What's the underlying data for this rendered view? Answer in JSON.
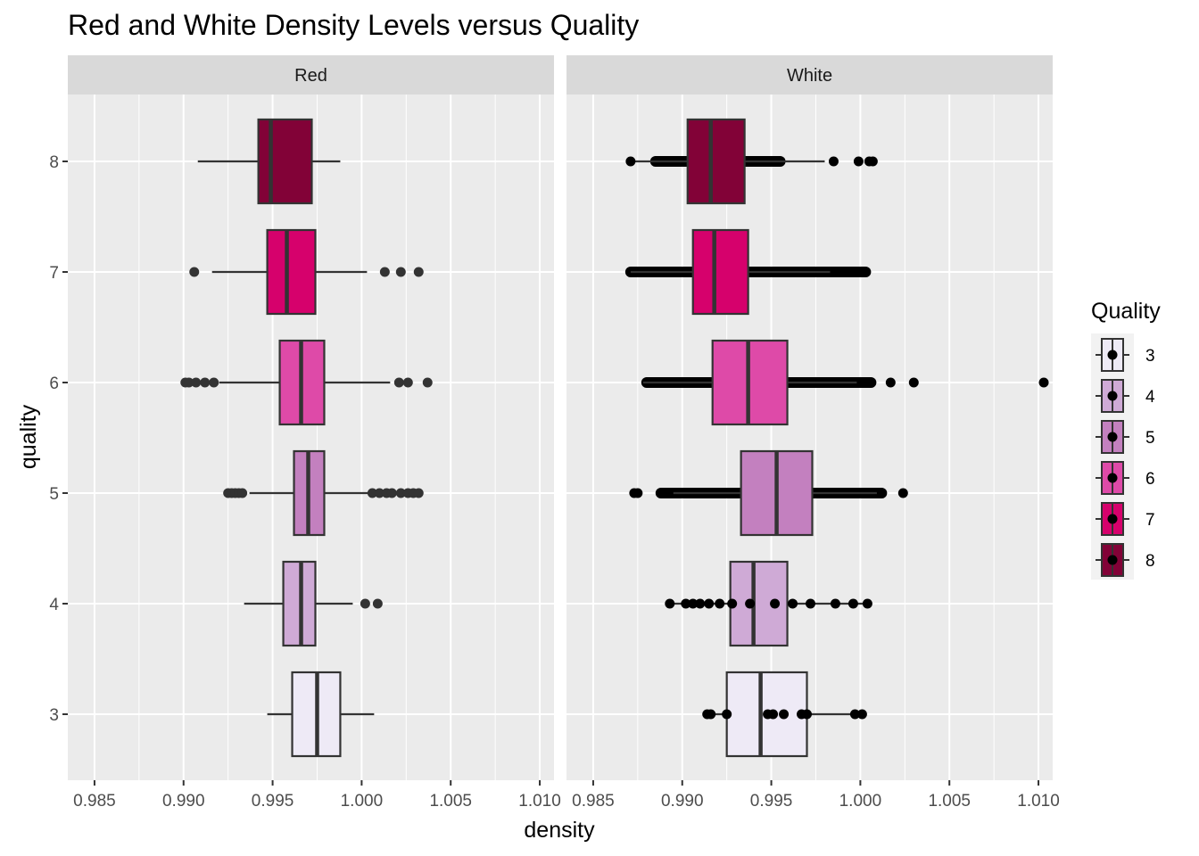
{
  "chart_data": {
    "type": "boxplot",
    "title": "Red and White Density Levels versus Quality",
    "xlabel": "density",
    "ylabel": "quality",
    "xlim": [
      0.9835,
      1.0108
    ],
    "x_ticks": [
      "0.985",
      "0.990",
      "0.995",
      "1.000",
      "1.005",
      "1.010"
    ],
    "y_categories": [
      "3",
      "4",
      "5",
      "6",
      "7",
      "8"
    ],
    "legend": {
      "title": "Quality",
      "position": "right",
      "entries": [
        {
          "label": "3",
          "color": "#EEEAF6"
        },
        {
          "label": "4",
          "color": "#CFAAD6"
        },
        {
          "label": "5",
          "color": "#C380BF"
        },
        {
          "label": "6",
          "color": "#DE4AA8"
        },
        {
          "label": "7",
          "color": "#D6016C"
        },
        {
          "label": "8",
          "color": "#820237"
        }
      ]
    },
    "panels": [
      {
        "name": "Red",
        "boxes": [
          {
            "quality": "3",
            "whisker_low": 0.9947,
            "q1": 0.9961,
            "median": 0.9975,
            "q3": 0.9988,
            "whisker_high": 1.0007,
            "outliers": []
          },
          {
            "quality": "4",
            "whisker_low": 0.9934,
            "q1": 0.9956,
            "median": 0.9966,
            "q3": 0.9974,
            "whisker_high": 0.9995,
            "outliers": [
              1.0002,
              1.0009
            ]
          },
          {
            "quality": "5",
            "whisker_low": 0.9937,
            "q1": 0.9962,
            "median": 0.997,
            "q3": 0.9979,
            "whisker_high": 1.0004,
            "outliers": [
              0.9925,
              0.9927,
              0.9929,
              0.9931,
              0.9933,
              1.0006,
              1.001,
              1.0014,
              1.0017,
              1.0022,
              1.0026,
              1.0029,
              1.0032
            ]
          },
          {
            "quality": "6",
            "whisker_low": 0.992,
            "q1": 0.9954,
            "median": 0.9966,
            "q3": 0.9979,
            "whisker_high": 1.0016,
            "outliers": [
              0.9901,
              0.9903,
              0.9907,
              0.9912,
              0.9917,
              1.0021,
              1.0026,
              1.0037
            ]
          },
          {
            "quality": "7",
            "whisker_low": 0.9916,
            "q1": 0.9947,
            "median": 0.9958,
            "q3": 0.9974,
            "whisker_high": 1.0003,
            "outliers": [
              0.9906,
              1.0013,
              1.0022,
              1.0032
            ]
          },
          {
            "quality": "8",
            "whisker_low": 0.9908,
            "q1": 0.9942,
            "median": 0.9949,
            "q3": 0.9972,
            "whisker_high": 0.9988,
            "outliers": []
          }
        ]
      },
      {
        "name": "White",
        "boxes": [
          {
            "quality": "3",
            "whisker_low": 0.9913,
            "q1": 0.9925,
            "median": 0.9944,
            "q3": 0.997,
            "whisker_high": 0.9999,
            "outliers": [
              0.9914,
              0.9916,
              0.9925,
              0.9948,
              0.9951,
              0.9957,
              0.9967,
              0.997,
              0.9997,
              1.0001
            ]
          },
          {
            "quality": "4",
            "whisker_low": 0.9892,
            "q1": 0.9927,
            "median": 0.994,
            "q3": 0.9959,
            "whisker_high": 1.0004,
            "outliers": [
              0.9893,
              0.9902,
              0.9906,
              0.991,
              0.9915,
              0.9921,
              0.9928,
              0.9938,
              0.9952,
              0.9962,
              0.9972,
              0.9986,
              0.9996,
              1.0004
            ]
          },
          {
            "quality": "5",
            "whisker_low": 0.9895,
            "q1": 0.9933,
            "median": 0.9953,
            "q3": 0.9973,
            "whisker_high": 1.0012,
            "outliers": [
              0.9873,
              0.9875,
              0.9888,
              0.9892,
              1.0012,
              1.0024
            ],
            "outlier_bands": [
              [
                0.9888,
                1.0012
              ]
            ]
          },
          {
            "quality": "6",
            "whisker_low": 0.9878,
            "q1": 0.9917,
            "median": 0.9937,
            "q3": 0.9959,
            "whisker_high": 0.9998,
            "outliers": [
              1.0017,
              1.003,
              1.0103
            ],
            "outlier_bands": [
              [
                0.988,
                1.0006
              ]
            ]
          },
          {
            "quality": "7",
            "whisker_low": 0.9871,
            "q1": 0.9906,
            "median": 0.9918,
            "q3": 0.9937,
            "whisker_high": 0.9983,
            "outliers": [],
            "outlier_bands": [
              [
                0.9871,
                1.0003
              ]
            ]
          },
          {
            "quality": "8",
            "whisker_low": 0.9871,
            "q1": 0.9903,
            "median": 0.9916,
            "q3": 0.9935,
            "whisker_high": 0.998,
            "outliers": [
              0.9871,
              0.9985,
              0.9999,
              1.0005,
              1.0007
            ],
            "outlier_bands": [
              [
                0.9885,
                0.9955
              ]
            ]
          }
        ]
      }
    ]
  }
}
